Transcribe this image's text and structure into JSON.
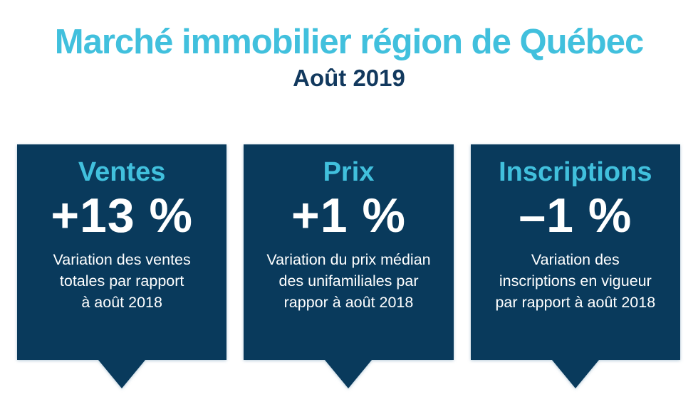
{
  "header": {
    "title": "Marché immobilier région de Québec",
    "subtitle": "Août 2019"
  },
  "colors": {
    "teal": "#41c0dd",
    "navy": "#093a5c",
    "navy-text": "#12395e",
    "card-text": "#ffffff"
  },
  "cards": [
    {
      "label": "Ventes",
      "value": "+13 %",
      "description": [
        "Variation des ventes",
        "totales par rapport",
        "à août 2018"
      ]
    },
    {
      "label": "Prix",
      "value": "+1 %",
      "description": [
        "Variation du prix médian",
        "des unifamiliales par",
        "rappor à août 2018"
      ]
    },
    {
      "label": "Inscriptions",
      "value": "–1 %",
      "description": [
        "Variation des",
        "inscriptions en vigueur",
        "par rapport à août 2018"
      ]
    }
  ],
  "chart_data": {
    "type": "table",
    "title": "Marché immobilier région de Québec",
    "subtitle": "Août 2019",
    "categories": [
      "Ventes",
      "Prix",
      "Inscriptions"
    ],
    "values": [
      13,
      1,
      -1
    ],
    "unit": "%",
    "value_labels": [
      "+13 %",
      "+1 %",
      "–1 %"
    ],
    "notes": [
      "Variation des ventes totales par rapport à août 2018",
      "Variation du prix médian des unifamiliales par rappor à août 2018",
      "Variation des inscriptions en vigueur par rapport à août 2018"
    ]
  }
}
